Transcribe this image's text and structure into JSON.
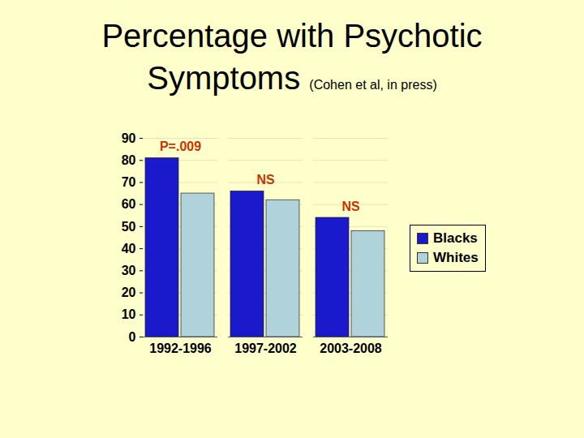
{
  "chart_data": {
    "type": "bar",
    "title": "Percentage with Psychotic Symptoms",
    "subtitle": "(Cohen et al, in press)",
    "categories": [
      "1992-1996",
      "1997-2002",
      "2003-2008"
    ],
    "series": [
      {
        "name": "Blacks",
        "color": "#1a1acc",
        "values": [
          81,
          66,
          54
        ]
      },
      {
        "name": "Whites",
        "color": "#b0d2da",
        "values": [
          65,
          62,
          48
        ]
      }
    ],
    "annotations": [
      {
        "category": "1992-1996",
        "text": "P=.009"
      },
      {
        "category": "1997-2002",
        "text": "NS"
      },
      {
        "category": "2003-2008",
        "text": "NS"
      }
    ],
    "ylim": [
      0,
      90
    ],
    "yticks": [
      0,
      10,
      20,
      30,
      40,
      50,
      60,
      70,
      80,
      90
    ],
    "grid": true,
    "legend": "right"
  }
}
